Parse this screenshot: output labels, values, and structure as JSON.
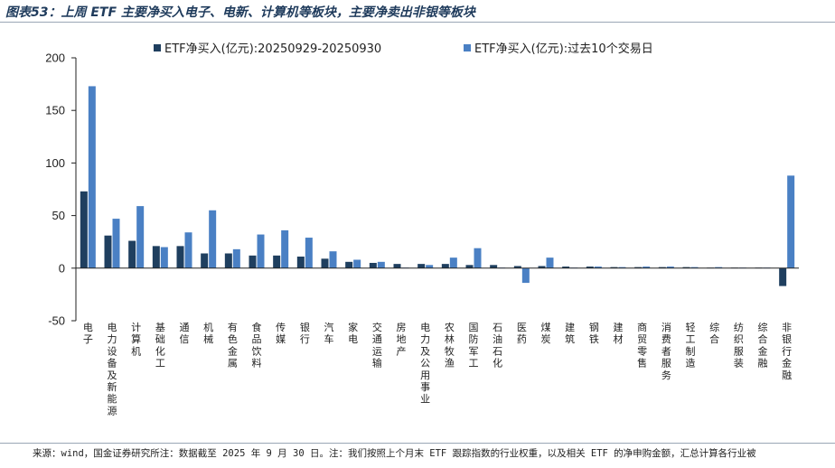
{
  "header": {
    "title": "图表53：上周 ETF 主要净买入电子、电新、计算机等板块，主要净卖出非银等板块"
  },
  "footer": {
    "source": "来源：wind，国金证券研究所注：数据截至 2025 年 9 月 30 日。注：我们按照上个月末 ETF 跟踪指数的行业权重，以及相关 ETF 的净申购金额，汇总计算各行业被"
  },
  "chart_data": {
    "type": "bar",
    "ylim": [
      -50,
      200
    ],
    "yticks": [
      -50,
      0,
      50,
      100,
      150,
      200
    ],
    "grid": false,
    "legend_position": "top",
    "categories": [
      "电子",
      "电力设备及新能源",
      "计算机",
      "基础化工",
      "通信",
      "机械",
      "有色金属",
      "食品饮料",
      "传媒",
      "银行",
      "汽车",
      "家电",
      "交通运输",
      "房地产",
      "电力及公用事业",
      "农林牧渔",
      "国防军工",
      "石油石化",
      "医药",
      "煤炭",
      "建筑",
      "钢铁",
      "建材",
      "商贸零售",
      "消费者服务",
      "轻工制造",
      "综合",
      "纺织服装",
      "综合金融",
      "非银行金融"
    ],
    "series": [
      {
        "name": "ETF净买入(亿元):20250929-20250930",
        "color": "#1f3f5f",
        "values": [
          73,
          31,
          26,
          21,
          21,
          14,
          14,
          12,
          12,
          11,
          9,
          6,
          5,
          4,
          4,
          4,
          3,
          3,
          2,
          2,
          1.5,
          1.5,
          1,
          1,
          1,
          1,
          0.5,
          0.5,
          0.5,
          -17
        ]
      },
      {
        "name": "ETF净买入(亿元):过去10个交易日",
        "color": "#4a80c4",
        "values": [
          173,
          47,
          59,
          20,
          34,
          55,
          18,
          32,
          36,
          29,
          16,
          8,
          6,
          0.5,
          3,
          10,
          19,
          0.5,
          -14,
          10,
          0.5,
          1.5,
          1,
          1.5,
          1.5,
          1,
          1,
          0.5,
          0.5,
          88
        ]
      }
    ]
  }
}
